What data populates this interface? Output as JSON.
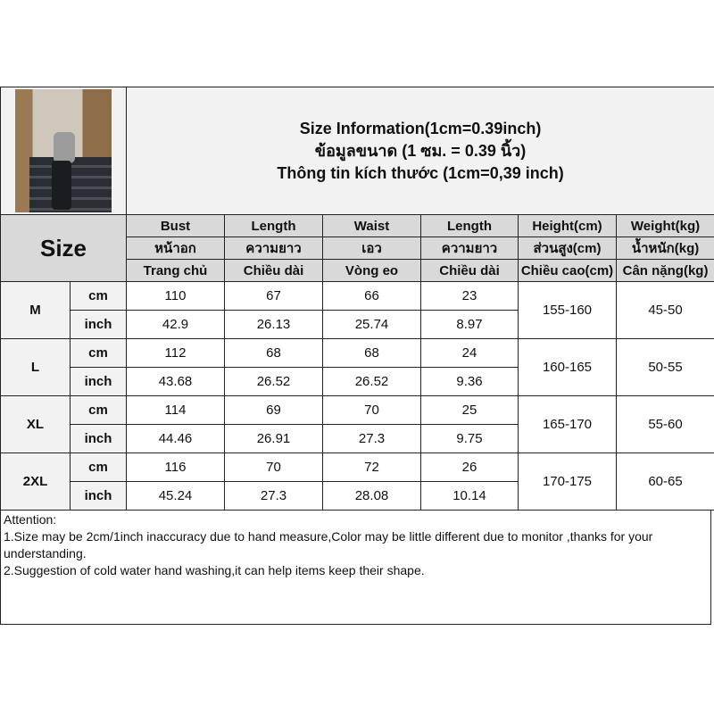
{
  "header": {
    "title_en": "Size Information(1cm=0.39inch)",
    "title_th": "ข้อมูลขนาด (1 ซม. = 0.39 นิ้ว)",
    "title_vi": "Thông tin kích thước (1cm=0,39 inch)"
  },
  "size_label": "Size",
  "columns": [
    {
      "en": "Bust",
      "th": "หน้าอก",
      "vi": "Trang chủ"
    },
    {
      "en": "Length",
      "th": "ความยาว",
      "vi": "Chiều dài"
    },
    {
      "en": "Waist",
      "th": "เอว",
      "vi": "Vòng eo"
    },
    {
      "en": "Length",
      "th": "ความยาว",
      "vi": "Chiều dài"
    },
    {
      "en": "Height(cm)",
      "th": "ส่วนสูง(cm)",
      "vi": "Chiều cao(cm)"
    },
    {
      "en": "Weight(kg)",
      "th": "น้ำหนัก(kg)",
      "vi": "Cân nặng(kg)"
    }
  ],
  "unit_cm": "cm",
  "unit_inch": "inch",
  "rows": [
    {
      "size": "M",
      "cm": [
        "110",
        "67",
        "66",
        "23"
      ],
      "inch": [
        "42.9",
        "26.13",
        "25.74",
        "8.97"
      ],
      "height": "155-160",
      "weight": "45-50"
    },
    {
      "size": "L",
      "cm": [
        "112",
        "68",
        "68",
        "24"
      ],
      "inch": [
        "43.68",
        "26.52",
        "26.52",
        "9.36"
      ],
      "height": "160-165",
      "weight": "50-55"
    },
    {
      "size": "XL",
      "cm": [
        "114",
        "69",
        "70",
        "25"
      ],
      "inch": [
        "44.46",
        "26.91",
        "27.3",
        "9.75"
      ],
      "height": "165-170",
      "weight": "55-60"
    },
    {
      "size": "2XL",
      "cm": [
        "116",
        "70",
        "72",
        "26"
      ],
      "inch": [
        "45.24",
        "27.3",
        "28.08",
        "10.14"
      ],
      "height": "170-175",
      "weight": "60-65"
    }
  ],
  "attention": {
    "title": "Attention:",
    "line1": "1.Size may be 2cm/1inch inaccuracy due to hand measure,Color may be little different due to monitor ,thanks for your understanding.",
    "line2": "2.Suggestion of cold water hand washing,it can help items keep their shape."
  }
}
